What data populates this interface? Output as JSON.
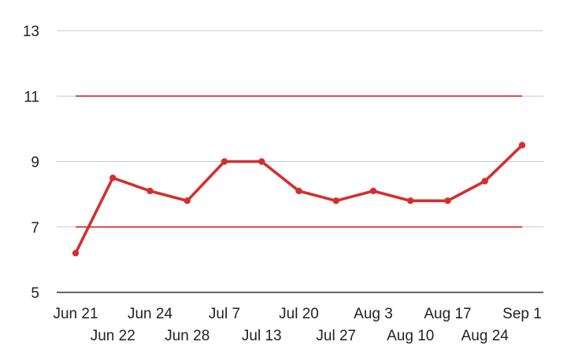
{
  "chart_data": {
    "type": "line",
    "x": [
      "Jun 21",
      "Jun 22",
      "Jun 24",
      "Jun 28",
      "Jul 7",
      "Jul 13",
      "Jul 20",
      "Jul 27",
      "Aug 3",
      "Aug 10",
      "Aug 17",
      "Aug 24",
      "Sep 1"
    ],
    "series": [
      {
        "values": [
          6.2,
          8.5,
          8.1,
          7.8,
          9.0,
          9.0,
          8.1,
          7.8,
          8.1,
          7.8,
          7.8,
          8.4,
          9.5
        ],
        "color": "#d32f2f"
      }
    ],
    "reference_lines": [
      {
        "value": 11,
        "color": "#d32f2f"
      },
      {
        "value": 7,
        "color": "#d32f2f"
      }
    ],
    "ylim": [
      5,
      13
    ],
    "yticks": [
      "5",
      "7",
      "9",
      "11",
      "13"
    ],
    "grid": true,
    "title": "",
    "xlabel": "",
    "ylabel": ""
  }
}
